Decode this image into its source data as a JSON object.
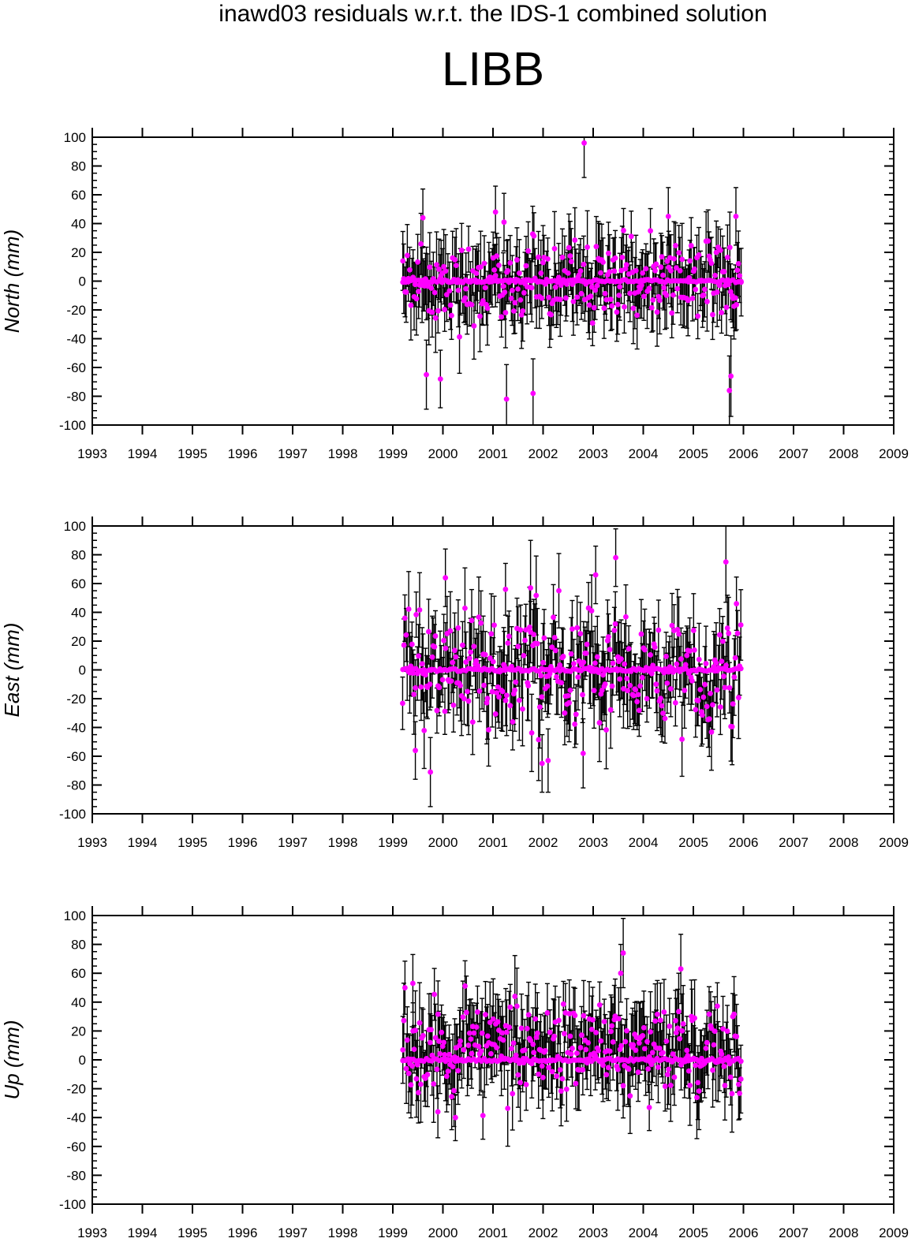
{
  "header": {
    "title": "inawd03 residuals w.r.t. the IDS-1 combined solution",
    "station": "LIBB"
  },
  "colors": {
    "point": "#ff00ff",
    "error_bar": "#000000",
    "axis": "#000000"
  },
  "chart_data": [
    {
      "type": "scatter",
      "ylabel": "North (mm)",
      "xlim": [
        1993,
        2009
      ],
      "ylim": [
        -100,
        100
      ],
      "x_ticks": [
        1993,
        1994,
        1995,
        1996,
        1997,
        1998,
        1999,
        2000,
        2001,
        2002,
        2003,
        2004,
        2005,
        2006,
        2007,
        2008,
        2009
      ],
      "y_ticks": [
        100,
        80,
        60,
        40,
        20,
        0,
        -20,
        -40,
        -60,
        -80,
        -100
      ],
      "data_range": [
        1999.2,
        2005.95
      ],
      "baseline": 0,
      "error_bars": true,
      "grid": false,
      "seed": 11,
      "noise_sd": 14,
      "err_mean": 20,
      "outliers": [
        {
          "x": 2002.82,
          "y": 96,
          "err": 24
        },
        {
          "x": 2001.27,
          "y": -82,
          "err": 24
        },
        {
          "x": 2001.8,
          "y": -78,
          "err": 24
        },
        {
          "x": 2005.72,
          "y": -76,
          "err": 24
        },
        {
          "x": 2005.75,
          "y": -66,
          "err": 28
        },
        {
          "x": 1999.67,
          "y": -65,
          "err": 24
        },
        {
          "x": 1999.95,
          "y": -68,
          "err": 20
        },
        {
          "x": 2001.05,
          "y": 48,
          "err": 18
        },
        {
          "x": 2001.22,
          "y": 41,
          "err": 20
        },
        {
          "x": 2005.85,
          "y": 45,
          "err": 20
        },
        {
          "x": 1999.6,
          "y": 44,
          "err": 20
        },
        {
          "x": 2004.5,
          "y": 45,
          "err": 20
        }
      ]
    },
    {
      "type": "scatter",
      "ylabel": "East (mm)",
      "xlim": [
        1993,
        2009
      ],
      "ylim": [
        -100,
        100
      ],
      "x_ticks": [
        1993,
        1994,
        1995,
        1996,
        1997,
        1998,
        1999,
        2000,
        2001,
        2002,
        2003,
        2004,
        2005,
        2006,
        2007,
        2008,
        2009
      ],
      "y_ticks": [
        100,
        80,
        60,
        40,
        20,
        0,
        -20,
        -40,
        -60,
        -80,
        -100
      ],
      "data_range": [
        1999.2,
        2005.95
      ],
      "baseline": 0,
      "error_bars": true,
      "grid": false,
      "seed": 23,
      "noise_sd": 20,
      "err_mean": 22,
      "outliers": [
        {
          "x": 2005.65,
          "y": 75,
          "err": 28
        },
        {
          "x": 2003.45,
          "y": 78,
          "err": 20
        },
        {
          "x": 2000.05,
          "y": 64,
          "err": 20
        },
        {
          "x": 2001.75,
          "y": 57,
          "err": 33
        },
        {
          "x": 2001.25,
          "y": 56,
          "err": 18
        },
        {
          "x": 2003.05,
          "y": 66,
          "err": 20
        },
        {
          "x": 1999.75,
          "y": -71,
          "err": 24
        },
        {
          "x": 2001.98,
          "y": -65,
          "err": 20
        },
        {
          "x": 2002.8,
          "y": -58,
          "err": 24
        },
        {
          "x": 1999.45,
          "y": -56,
          "err": 20
        },
        {
          "x": 2002.1,
          "y": -63,
          "err": 22
        }
      ]
    },
    {
      "type": "scatter",
      "ylabel": "Up (mm)",
      "xlim": [
        1993,
        2009
      ],
      "ylim": [
        -100,
        100
      ],
      "x_ticks": [
        1993,
        1994,
        1995,
        1996,
        1997,
        1998,
        1999,
        2000,
        2001,
        2002,
        2003,
        2004,
        2005,
        2006,
        2007,
        2008,
        2009
      ],
      "y_ticks": [
        100,
        80,
        60,
        40,
        20,
        0,
        -20,
        -40,
        -60,
        -80,
        -100
      ],
      "data_range": [
        1999.2,
        2005.95
      ],
      "baseline": 0,
      "error_bars": true,
      "grid": false,
      "seed": 37,
      "noise_sd": 16,
      "err_mean": 22,
      "mean_offset": 8,
      "outliers": [
        {
          "x": 2003.6,
          "y": 74,
          "err": 24
        },
        {
          "x": 2004.75,
          "y": 63,
          "err": 24
        },
        {
          "x": 2003.55,
          "y": 60,
          "err": 20
        },
        {
          "x": 1999.4,
          "y": 53,
          "err": 20
        },
        {
          "x": 2000.25,
          "y": -40,
          "err": 16
        },
        {
          "x": 1999.9,
          "y": -36,
          "err": 18
        },
        {
          "x": 2004.12,
          "y": -33,
          "err": 16
        }
      ]
    }
  ]
}
